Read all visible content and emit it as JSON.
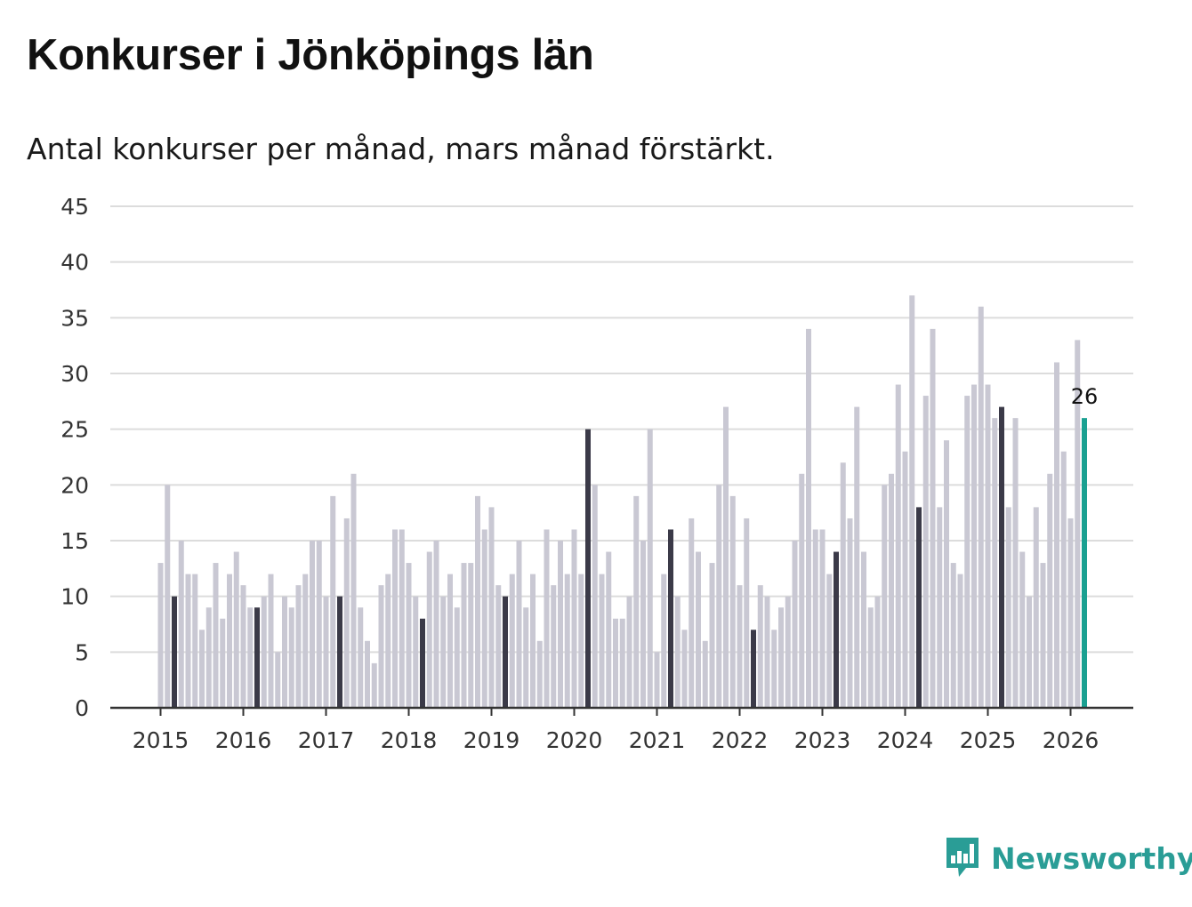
{
  "colors": {
    "bar_default": "#c9c8d3",
    "bar_march": "#3b3a48",
    "bar_latest": "#1aa091",
    "grid": "#dcdcdc",
    "axis": "#333333",
    "brand": "#2a9d96"
  },
  "brand": {
    "name": "Newsworthy",
    "icon": "bar-chart-speech-bubble-icon"
  },
  "chart_data": {
    "type": "bar",
    "title": "Konkurser i Jönköpings län",
    "subtitle": "Antal konkurser per månad, mars månad förstärkt.",
    "xlabel": "",
    "ylabel": "",
    "ylim": [
      0,
      45
    ],
    "yticks": [
      0,
      5,
      10,
      15,
      20,
      25,
      30,
      35,
      40,
      45
    ],
    "grid": true,
    "legend": "none",
    "xticks": [
      "2015",
      "2016",
      "2017",
      "2018",
      "2019",
      "2020",
      "2021",
      "2022",
      "2023",
      "2024",
      "2025",
      "2026"
    ],
    "highlight": "march",
    "latest_label": "26",
    "series": [
      {
        "name": "",
        "start": "2015-01",
        "values": [
          13,
          20,
          10,
          15,
          12,
          12,
          7,
          9,
          13,
          8,
          12,
          14,
          11,
          9,
          9,
          10,
          12,
          5,
          10,
          9,
          11,
          12,
          15,
          15,
          10,
          19,
          10,
          17,
          21,
          9,
          6,
          4,
          11,
          12,
          16,
          16,
          13,
          10,
          8,
          14,
          15,
          10,
          12,
          9,
          13,
          13,
          19,
          16,
          18,
          11,
          10,
          12,
          15,
          9,
          12,
          6,
          16,
          11,
          15,
          12,
          16,
          12,
          25,
          20,
          12,
          14,
          8,
          8,
          10,
          19,
          15,
          25,
          5,
          12,
          16,
          10,
          7,
          17,
          14,
          6,
          13,
          20,
          27,
          19,
          11,
          17,
          7,
          11,
          10,
          7,
          9,
          10,
          15,
          21,
          34,
          16,
          16,
          12,
          14,
          22,
          17,
          27,
          14,
          9,
          10,
          20,
          21,
          29,
          23,
          37,
          18,
          28,
          34,
          18,
          24,
          13,
          12,
          28,
          29,
          36,
          29,
          26,
          27,
          18,
          26,
          14,
          10,
          18,
          13,
          21,
          31,
          23,
          17,
          33,
          26
        ]
      }
    ]
  }
}
